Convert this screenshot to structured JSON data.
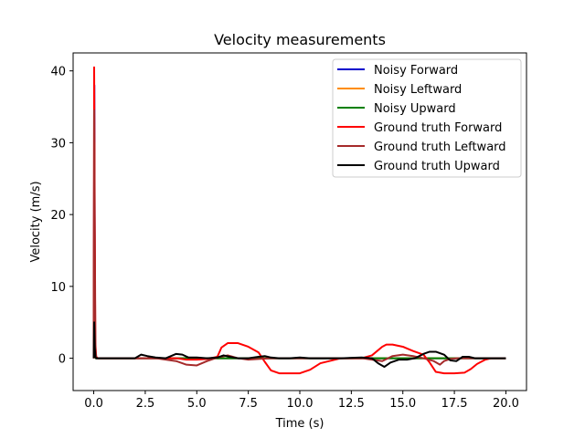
{
  "chart_data": {
    "type": "line",
    "title": "Velocity measurements",
    "xlabel": "Time (s)",
    "ylabel": "Velocity (m/s)",
    "xlim": [
      -1.0,
      21.0
    ],
    "ylim": [
      -4.5,
      42.5
    ],
    "xticks": [
      0.0,
      2.5,
      5.0,
      7.5,
      10.0,
      12.5,
      15.0,
      17.5,
      20.0
    ],
    "xtick_labels": [
      "0.0",
      "2.5",
      "5.0",
      "7.5",
      "10.0",
      "12.5",
      "15.0",
      "17.5",
      "20.0"
    ],
    "yticks": [
      0,
      10,
      20,
      30,
      40
    ],
    "ytick_labels": [
      "0",
      "10",
      "20",
      "30",
      "40"
    ],
    "grid": false,
    "legend_position": "top-right",
    "series": [
      {
        "name": "Noisy Forward",
        "color": "#0000cc",
        "x": [
          0.0,
          0.03,
          0.06,
          0.1,
          0.2,
          20.0
        ],
        "y": [
          0,
          38,
          2,
          0,
          0,
          0
        ]
      },
      {
        "name": "Noisy Leftward",
        "color": "#ff8c00",
        "x": [
          0.0,
          0.03,
          0.06,
          0.1,
          0.2,
          20.0
        ],
        "y": [
          0,
          30,
          1,
          0,
          0,
          0
        ]
      },
      {
        "name": "Noisy Upward",
        "color": "#008000",
        "x": [
          0.0,
          0.03,
          0.06,
          0.1,
          0.2,
          20.0
        ],
        "y": [
          0,
          25,
          1,
          0,
          0,
          0
        ]
      },
      {
        "name": "Ground truth Forward",
        "color": "#ff0000",
        "x": [
          0.0,
          0.02,
          0.05,
          0.08,
          0.12,
          0.2,
          2.0,
          3.0,
          3.5,
          4.0,
          4.5,
          5.0,
          5.5,
          6.0,
          6.2,
          6.5,
          7.0,
          7.5,
          8.0,
          8.3,
          8.6,
          9.0,
          9.5,
          10.0,
          10.5,
          11.0,
          12.0,
          13.0,
          13.5,
          14.0,
          14.2,
          14.5,
          15.0,
          15.5,
          16.0,
          16.3,
          16.6,
          17.0,
          17.5,
          18.0,
          18.3,
          18.6,
          19.0,
          19.3,
          19.6,
          20.0
        ],
        "y": [
          0,
          40.5,
          20,
          2,
          0.2,
          0,
          0,
          0,
          0,
          0,
          -0.2,
          -0.2,
          -0.1,
          0.2,
          1.5,
          2.1,
          2.1,
          1.6,
          0.8,
          -0.5,
          -1.7,
          -2.1,
          -2.1,
          -2.1,
          -1.6,
          -0.7,
          0,
          0,
          0.4,
          1.6,
          1.9,
          1.9,
          1.6,
          1.0,
          0.5,
          -0.6,
          -1.9,
          -2.1,
          -2.1,
          -2.0,
          -1.5,
          -0.8,
          -0.2,
          0,
          0,
          0
        ]
      },
      {
        "name": "Ground truth Leftward",
        "color": "#a52a2a",
        "x": [
          0.0,
          0.02,
          0.05,
          0.08,
          0.12,
          0.2,
          3.0,
          3.5,
          4.0,
          4.5,
          5.0,
          5.5,
          6.0,
          6.5,
          7.0,
          7.5,
          8.0,
          8.5,
          9.0,
          10.0,
          11.0,
          12.0,
          13.0,
          13.5,
          14.0,
          14.5,
          15.0,
          15.5,
          16.0,
          16.5,
          16.8,
          17.0,
          17.3,
          17.6,
          18.0,
          18.5,
          19.0,
          20.0
        ],
        "y": [
          0,
          34.5,
          15,
          1.5,
          0.1,
          0,
          0,
          -0.2,
          -0.4,
          -0.9,
          -1.0,
          -0.4,
          0.1,
          0.4,
          0.0,
          -0.2,
          -0.1,
          0.0,
          0.0,
          0.0,
          0.0,
          0.0,
          0.0,
          -0.2,
          -0.4,
          0.3,
          0.5,
          0.3,
          0.0,
          -0.4,
          -0.9,
          -0.4,
          -0.1,
          0.0,
          0.0,
          0.0,
          0.0,
          0.0
        ]
      },
      {
        "name": "Ground truth Upward",
        "color": "#000000",
        "x": [
          0.0,
          0.02,
          0.05,
          0.08,
          0.12,
          0.2,
          2.0,
          2.3,
          2.6,
          3.0,
          3.5,
          4.0,
          4.3,
          4.6,
          5.0,
          5.5,
          6.0,
          6.3,
          6.6,
          7.0,
          7.5,
          8.0,
          8.3,
          8.6,
          9.0,
          9.5,
          10.0,
          10.5,
          11.0,
          12.0,
          13.0,
          13.5,
          13.8,
          14.1,
          14.4,
          14.8,
          15.2,
          15.6,
          16.0,
          16.3,
          16.6,
          17.0,
          17.3,
          17.6,
          17.9,
          18.2,
          18.5,
          19.0,
          19.5,
          20.0
        ],
        "y": [
          0,
          5,
          1.5,
          0.2,
          0,
          0,
          0,
          0.5,
          0.3,
          0.1,
          0.0,
          0.6,
          0.5,
          0.1,
          0.1,
          0.0,
          0.1,
          0.4,
          0.2,
          0.0,
          0.0,
          0.2,
          0.3,
          0.1,
          0.0,
          0.0,
          0.1,
          0.0,
          0.0,
          0.0,
          0.1,
          0.0,
          -0.7,
          -1.2,
          -0.6,
          -0.2,
          -0.2,
          0.0,
          0.6,
          0.9,
          0.9,
          0.5,
          -0.3,
          -0.4,
          0.2,
          0.2,
          0.0,
          0.0,
          0.0,
          0.0
        ]
      }
    ]
  }
}
